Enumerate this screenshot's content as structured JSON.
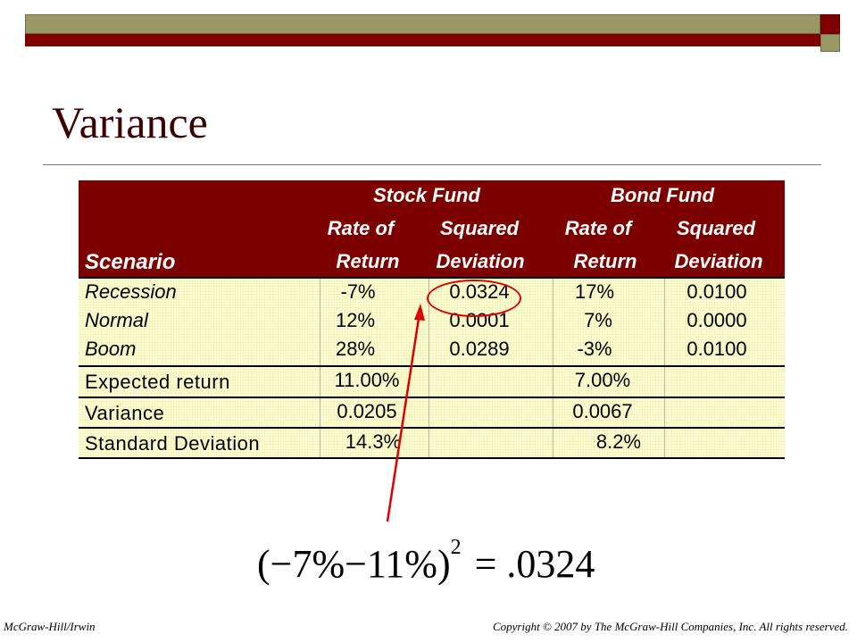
{
  "title": "Variance",
  "table": {
    "headers": {
      "stock_fund": "Stock Fund",
      "bond_fund": "Bond Fund",
      "rate_of": "Rate of",
      "squared": "Squared",
      "return": "Return",
      "deviation": "Deviation",
      "scenario": "Scenario"
    },
    "rows": [
      {
        "scenario": "Recession",
        "stock_return": "-7%",
        "stock_sq": "0.0324",
        "bond_return": "17%",
        "bond_sq": "0.0100"
      },
      {
        "scenario": "Normal",
        "stock_return": "12%",
        "stock_sq": "0.0001",
        "bond_return": "7%",
        "bond_sq": "0.0000"
      },
      {
        "scenario": "Boom",
        "stock_return": "28%",
        "stock_sq": "0.0289",
        "bond_return": "-3%",
        "bond_sq": "0.0100"
      }
    ],
    "expected_return": {
      "label": "Expected return",
      "stock": "11.00%",
      "bond": "7.00%"
    },
    "variance": {
      "label": "Variance",
      "stock": "0.0205",
      "bond": "0.0067"
    },
    "std_dev": {
      "label": "Standard Deviation",
      "stock": "14.3%",
      "bond": "8.2%"
    }
  },
  "formula": {
    "base": "(−7%−11%)",
    "exponent": "2",
    "rhs": "= .0324"
  },
  "footer": {
    "left": "McGraw-Hill/Irwin",
    "right": "Copyright © 2007 by The McGraw-Hill Companies, Inc. All rights reserved."
  },
  "colors": {
    "header_bg": "#7d0000",
    "body_bg": "#ffffd0",
    "highlight": "#e00000",
    "olive": "#999966"
  }
}
